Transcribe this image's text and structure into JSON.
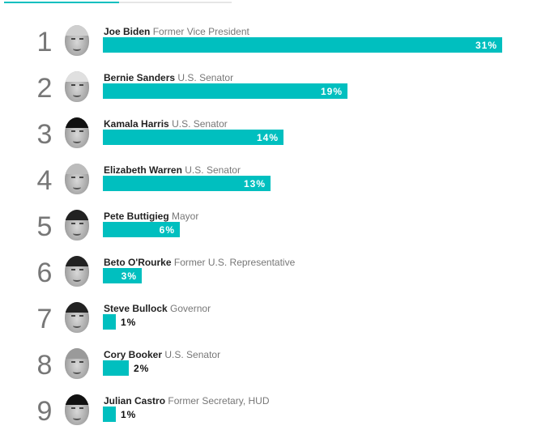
{
  "colors": {
    "bar": "#00bfbf",
    "progress_fill": "#00bfbf",
    "progress_track": "#e6e6e6"
  },
  "chart_data": {
    "type": "bar",
    "orientation": "horizontal",
    "unit": "%",
    "categories": [
      "Joe Biden",
      "Bernie Sanders",
      "Kamala Harris",
      "Elizabeth Warren",
      "Pete Buttigieg",
      "Beto O'Rourke",
      "Steve Bullock",
      "Cory Booker",
      "Julian Castro"
    ],
    "values": [
      31,
      19,
      14,
      13,
      6,
      3,
      1,
      2,
      1
    ],
    "rows": [
      {
        "rank": "1",
        "name": "Joe Biden",
        "title": "Former Vice President",
        "value": 31,
        "label": "31%",
        "hair": "#cfcfcf"
      },
      {
        "rank": "2",
        "name": "Bernie Sanders",
        "title": "U.S. Senator",
        "value": 19,
        "label": "19%",
        "hair": "#e0e0e0"
      },
      {
        "rank": "3",
        "name": "Kamala Harris",
        "title": "U.S. Senator",
        "value": 14,
        "label": "14%",
        "hair": "#111"
      },
      {
        "rank": "4",
        "name": "Elizabeth Warren",
        "title": "U.S. Senator",
        "value": 13,
        "label": "13%",
        "hair": "#bcbcbc"
      },
      {
        "rank": "5",
        "name": "Pete Buttigieg",
        "title": "Mayor",
        "value": 6,
        "label": "6%",
        "hair": "#222"
      },
      {
        "rank": "6",
        "name": "Beto O'Rourke",
        "title": "Former U.S. Representative",
        "value": 3,
        "label": "3%",
        "hair": "#222"
      },
      {
        "rank": "7",
        "name": "Steve Bullock",
        "title": "Governor",
        "value": 1,
        "label": "1%",
        "hair": "#222"
      },
      {
        "rank": "8",
        "name": "Cory Booker",
        "title": "U.S. Senator",
        "value": 2,
        "label": "2%",
        "hair": "#9a9a9a"
      },
      {
        "rank": "9",
        "name": "Julian Castro",
        "title": "Former Secretary, HUD",
        "value": 1,
        "label": "1%",
        "hair": "#111"
      }
    ]
  }
}
